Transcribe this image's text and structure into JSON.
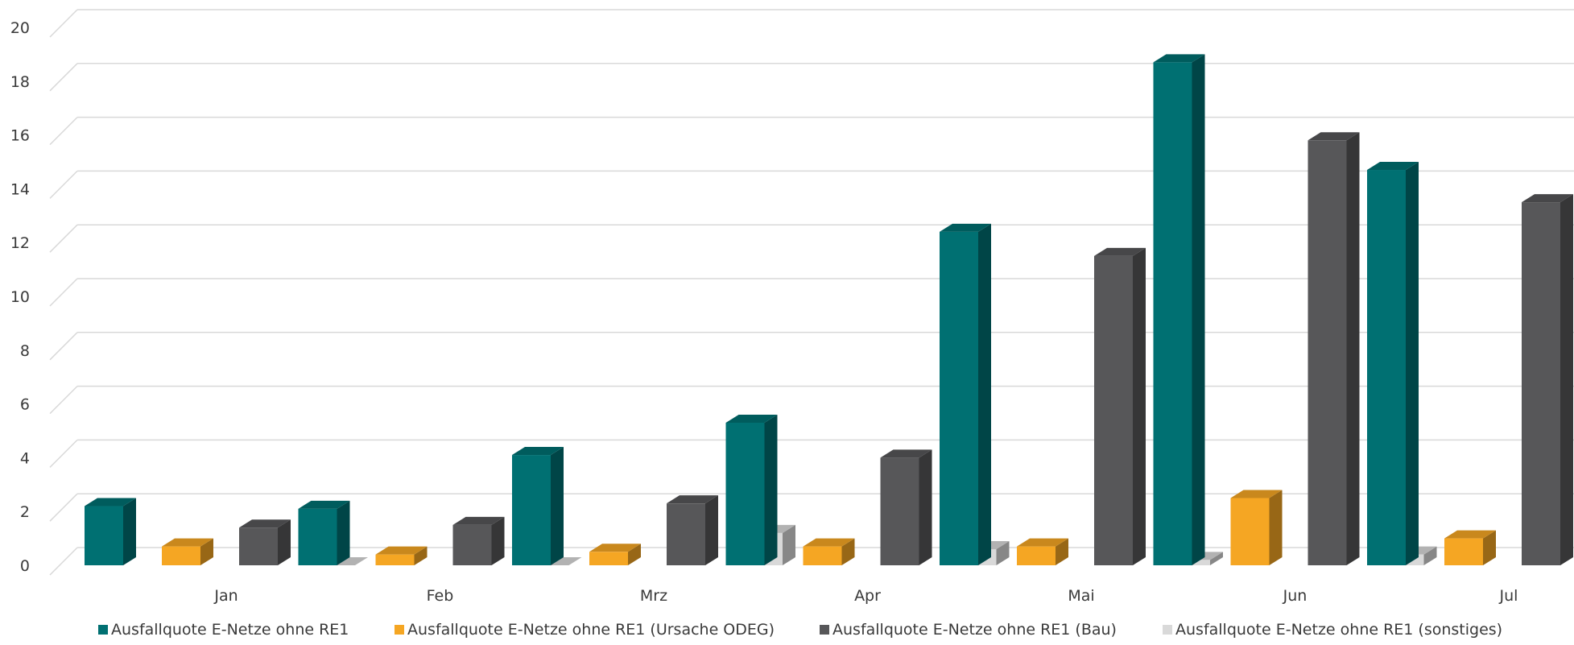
{
  "chart_data": {
    "type": "bar",
    "categories": [
      "Jan",
      "Feb",
      "Mrz",
      "Apr",
      "Mai",
      "Jun",
      "Jul"
    ],
    "series": [
      {
        "name": "Ausfallquote E-Netze ohne RE1",
        "color": "#007072",
        "values": [
          2.2,
          2.1,
          4.1,
          5.3,
          12.4,
          18.7,
          14.7
        ]
      },
      {
        "name": "Ausfallquote E-Netze ohne RE1 (Ursache ODEG)",
        "color": "#F5A623",
        "values": [
          0.7,
          0.4,
          0.5,
          0.7,
          0.7,
          2.5,
          1.0
        ]
      },
      {
        "name": "Ausfallquote E-Netze ohne RE1 (Bau)",
        "color": "#575759",
        "values": [
          1.4,
          1.5,
          2.3,
          4.0,
          11.5,
          15.8,
          13.5
        ]
      },
      {
        "name": "Ausfallquote E-Netze ohne RE1 (sonstiges)",
        "color": "#D9D9D9",
        "values": [
          0.0,
          0.0,
          1.2,
          0.6,
          0.2,
          0.4,
          0.2
        ]
      }
    ],
    "yticks": [
      "0",
      "2",
      "4",
      "6",
      "8",
      "10",
      "12",
      "14",
      "16",
      "18",
      "20"
    ],
    "ylim": [
      0,
      20
    ],
    "grid": true,
    "legend": "bottom",
    "style": "3d-clustered-column"
  }
}
